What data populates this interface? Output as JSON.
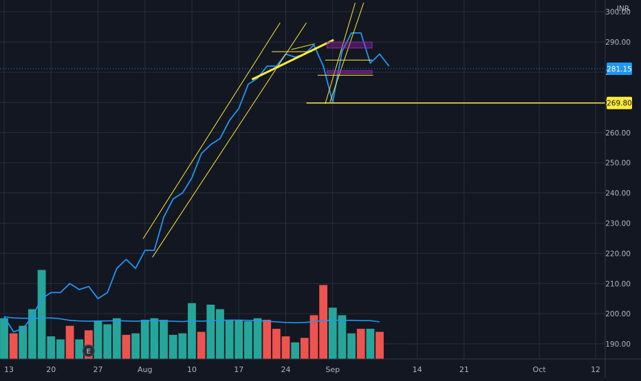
{
  "chart_data": {
    "type": "line",
    "currency": "INR",
    "last_price_label": "281.15",
    "level_label": "269.80",
    "event_marker": "E",
    "y_ticks": [
      "300.00",
      "290.00",
      "280.00",
      "270.00",
      "260.00",
      "250.00",
      "240.00",
      "230.00",
      "220.00",
      "210.00",
      "200.00",
      "190.00"
    ],
    "y_tick_values": [
      300,
      290,
      280,
      270,
      260,
      250,
      240,
      230,
      220,
      210,
      200,
      190
    ],
    "x_ticks": [
      "13",
      "20",
      "27",
      "Aug",
      "10",
      "17",
      "24",
      "Sep",
      "14",
      "21",
      "Oct",
      "12"
    ],
    "x_tick_index": [
      0,
      5,
      10,
      15,
      20,
      25,
      30,
      35,
      44,
      49,
      57,
      63
    ],
    "ylim": [
      185,
      303
    ],
    "price": {
      "name": "",
      "values": [
        199,
        194,
        195,
        199,
        205,
        207,
        207,
        210,
        208,
        209,
        205,
        207,
        215,
        218,
        215,
        221,
        221,
        232,
        238,
        240,
        245,
        253,
        256,
        258,
        264,
        268,
        276,
        278,
        282,
        282,
        286,
        285,
        286,
        289,
        282,
        270,
        287,
        293,
        293,
        283,
        286,
        282
      ]
    },
    "volume": {
      "max": 215,
      "bars": [
        {
          "v": 198.5,
          "up": true
        },
        {
          "v": 193.5,
          "up": false
        },
        {
          "v": 196,
          "up": true
        },
        {
          "v": 201.5,
          "up": true
        },
        {
          "v": 214.5,
          "up": true
        },
        {
          "v": 192.5,
          "up": true
        },
        {
          "v": 191.5,
          "up": true
        },
        {
          "v": 196,
          "up": false
        },
        {
          "v": 191.5,
          "up": true
        },
        {
          "v": 194.5,
          "up": false
        },
        {
          "v": 197.5,
          "up": true
        },
        {
          "v": 196.5,
          "up": true
        },
        {
          "v": 198.5,
          "up": true
        },
        {
          "v": 193,
          "up": false
        },
        {
          "v": 193.5,
          "up": true
        },
        {
          "v": 198,
          "up": true
        },
        {
          "v": 198.5,
          "up": true
        },
        {
          "v": 198,
          "up": true
        },
        {
          "v": 193,
          "up": true
        },
        {
          "v": 193.5,
          "up": true
        },
        {
          "v": 203.5,
          "up": true
        },
        {
          "v": 194,
          "up": false
        },
        {
          "v": 203,
          "up": true
        },
        {
          "v": 201.5,
          "up": true
        },
        {
          "v": 198,
          "up": true
        },
        {
          "v": 198,
          "up": true
        },
        {
          "v": 197.5,
          "up": true
        },
        {
          "v": 198.5,
          "up": true
        },
        {
          "v": 198,
          "up": false
        },
        {
          "v": 195,
          "up": false
        },
        {
          "v": 192.5,
          "up": false
        },
        {
          "v": 190.5,
          "up": true
        },
        {
          "v": 192,
          "up": false
        },
        {
          "v": 199.5,
          "up": false
        },
        {
          "v": 209.5,
          "up": false
        },
        {
          "v": 202,
          "up": true
        },
        {
          "v": 199.5,
          "up": true
        },
        {
          "v": 193.5,
          "up": true
        },
        {
          "v": 195,
          "up": false
        },
        {
          "v": 195,
          "up": true
        },
        {
          "v": 194,
          "up": false
        }
      ],
      "ma": [
        199,
        198.6,
        198.5,
        198.4,
        198.6,
        198.6,
        198.3,
        197.8,
        197.6,
        197.5,
        197.6,
        197.6,
        197.7,
        197.6,
        197.5,
        197.6,
        197.7,
        197.6,
        197.5,
        197.4,
        197.6,
        197.5,
        197.6,
        197.8,
        197.9,
        197.9,
        197.8,
        197.7,
        197.5,
        197.3,
        197.1,
        197.0,
        197.1,
        197.4,
        197.7,
        197.9,
        197.8,
        197.8,
        197.7,
        197.7,
        197.3
      ]
    },
    "grid": true,
    "colors": {
      "background": "#131722",
      "grid": "#2a2e39",
      "line": "#2196f3",
      "up": "#26a69a",
      "down": "#ef5350",
      "drawing": "#ffeb3b",
      "box": "#9c27b0",
      "axis_text": "#b2b5be"
    }
  }
}
